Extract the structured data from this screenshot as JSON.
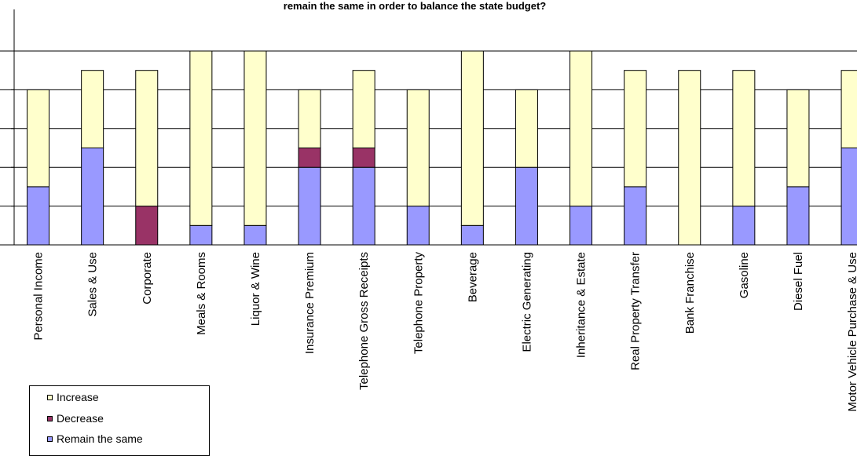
{
  "chart_data": {
    "type": "bar",
    "stacked": true,
    "title": "remain the same in order to balance the state budget?",
    "categories": [
      "Personal Income",
      "Sales & Use",
      "Corporate",
      "Meals & Rooms",
      "Liquor & Wine",
      "Insurance Premium",
      "Telephone Gross Receipts",
      "Telephone Property",
      "Beverage",
      "Electric Generating",
      "Inheritance & Estate",
      "Real Property Transfer",
      "Bank Franchise",
      "Gasoline",
      "Diesel Fuel",
      "Motor Vehicle Purchase & Use"
    ],
    "series": [
      {
        "name": "Remain the same",
        "color": "#9999ff",
        "values": [
          3,
          5,
          0,
          1,
          1,
          4,
          4,
          2,
          1,
          4,
          2,
          3,
          0,
          2,
          3,
          5
        ]
      },
      {
        "name": "Decrease",
        "color": "#993366",
        "values": [
          0,
          0,
          2,
          0,
          0,
          1,
          1,
          0,
          0,
          0,
          0,
          0,
          0,
          0,
          0,
          0
        ]
      },
      {
        "name": "Increase",
        "color": "#ffffcc",
        "values": [
          5,
          4,
          7,
          9,
          9,
          3,
          4,
          6,
          9,
          4,
          8,
          6,
          9,
          7,
          5,
          4
        ]
      }
    ],
    "ylim": [
      0,
      10
    ],
    "grid": true,
    "legend_position": "bottom-left"
  },
  "legend": [
    {
      "label": "Increase",
      "color": "#ffffcc"
    },
    {
      "label": "Decrease",
      "color": "#993366"
    },
    {
      "label": "Remain the same",
      "color": "#9999ff"
    }
  ]
}
